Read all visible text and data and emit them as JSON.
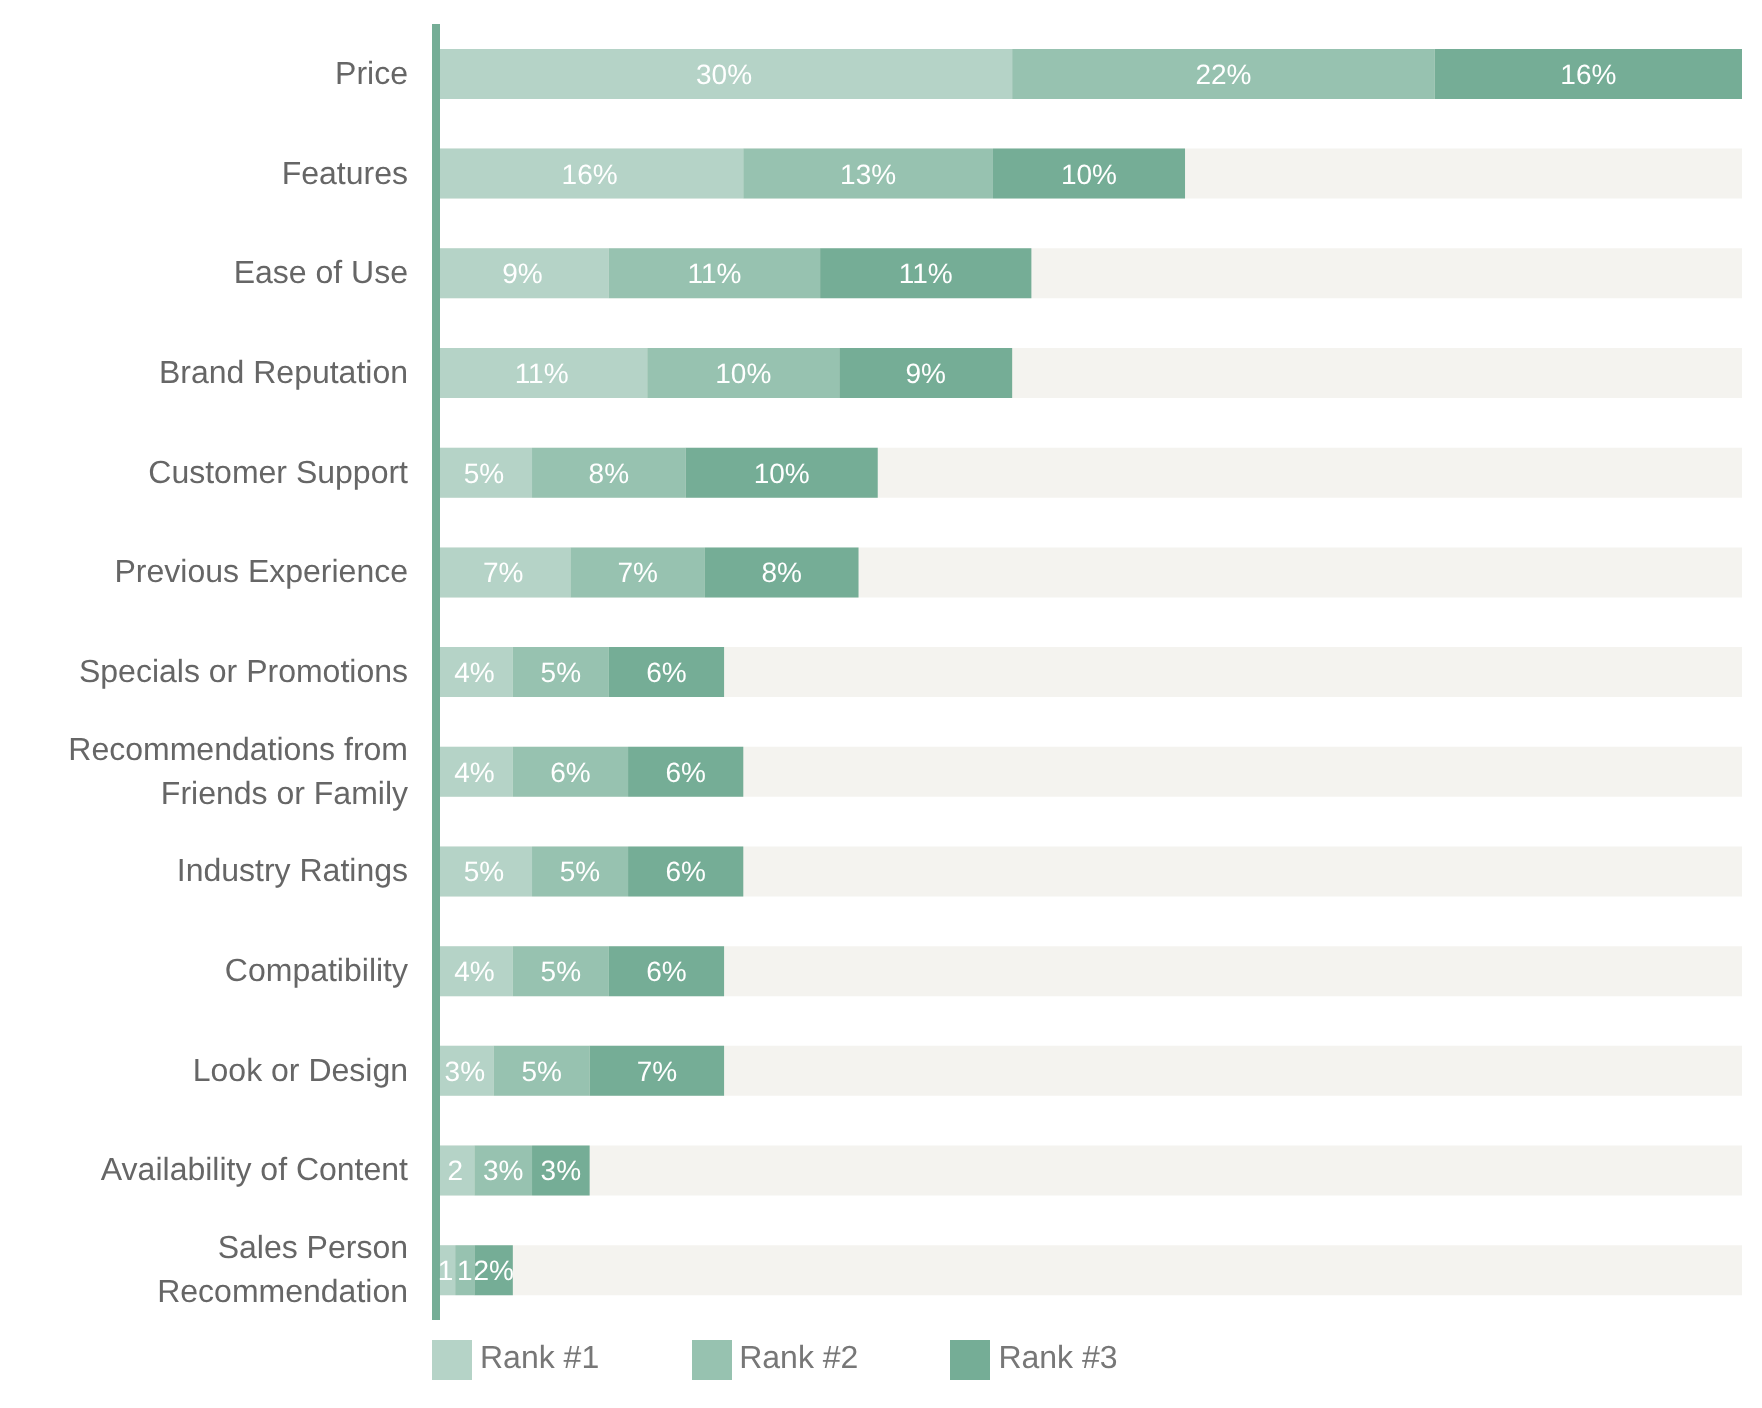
{
  "chart_data": {
    "type": "bar",
    "orientation": "horizontal",
    "stacked": true,
    "legend": "bottom left",
    "categories": [
      "Price",
      "Features",
      "Ease of Use",
      "Brand Reputation",
      "Customer Support",
      "Previous Experience",
      "Specials or Promotions",
      "Recommendations from Friends or Family",
      "Industry Ratings",
      "Compatibility",
      "Look or Design",
      "Availability of Content",
      "Sales Person Recommendation"
    ],
    "series": [
      {
        "name": "Rank #1",
        "color": "#b5d3c7",
        "values": [
          30,
          16,
          9,
          11,
          5,
          7,
          4,
          4,
          5,
          4,
          3,
          2,
          1
        ],
        "value_labels": [
          "30%",
          "16%",
          "9%",
          "11%",
          "5%",
          "7%",
          "4%",
          "4%",
          "5%",
          "4%",
          "3%",
          "2",
          "1"
        ]
      },
      {
        "name": "Rank #2",
        "color": "#97c2b0",
        "values": [
          22,
          13,
          11,
          10,
          8,
          7,
          5,
          6,
          5,
          5,
          5,
          3,
          1
        ],
        "value_labels": [
          "22%",
          "13%",
          "11%",
          "10%",
          "8%",
          "7%",
          "5%",
          "6%",
          "5%",
          "5%",
          "5%",
          "3%",
          "1"
        ]
      },
      {
        "name": "Rank #3",
        "color": "#75ad96",
        "values": [
          16,
          10,
          11,
          9,
          10,
          8,
          6,
          6,
          6,
          6,
          7,
          3,
          2
        ],
        "value_labels": [
          "16%",
          "10%",
          "11%",
          "9%",
          "10%",
          "8%",
          "6%",
          "6%",
          "6%",
          "6%",
          "7%",
          "3%",
          "2%"
        ]
      }
    ]
  }
}
